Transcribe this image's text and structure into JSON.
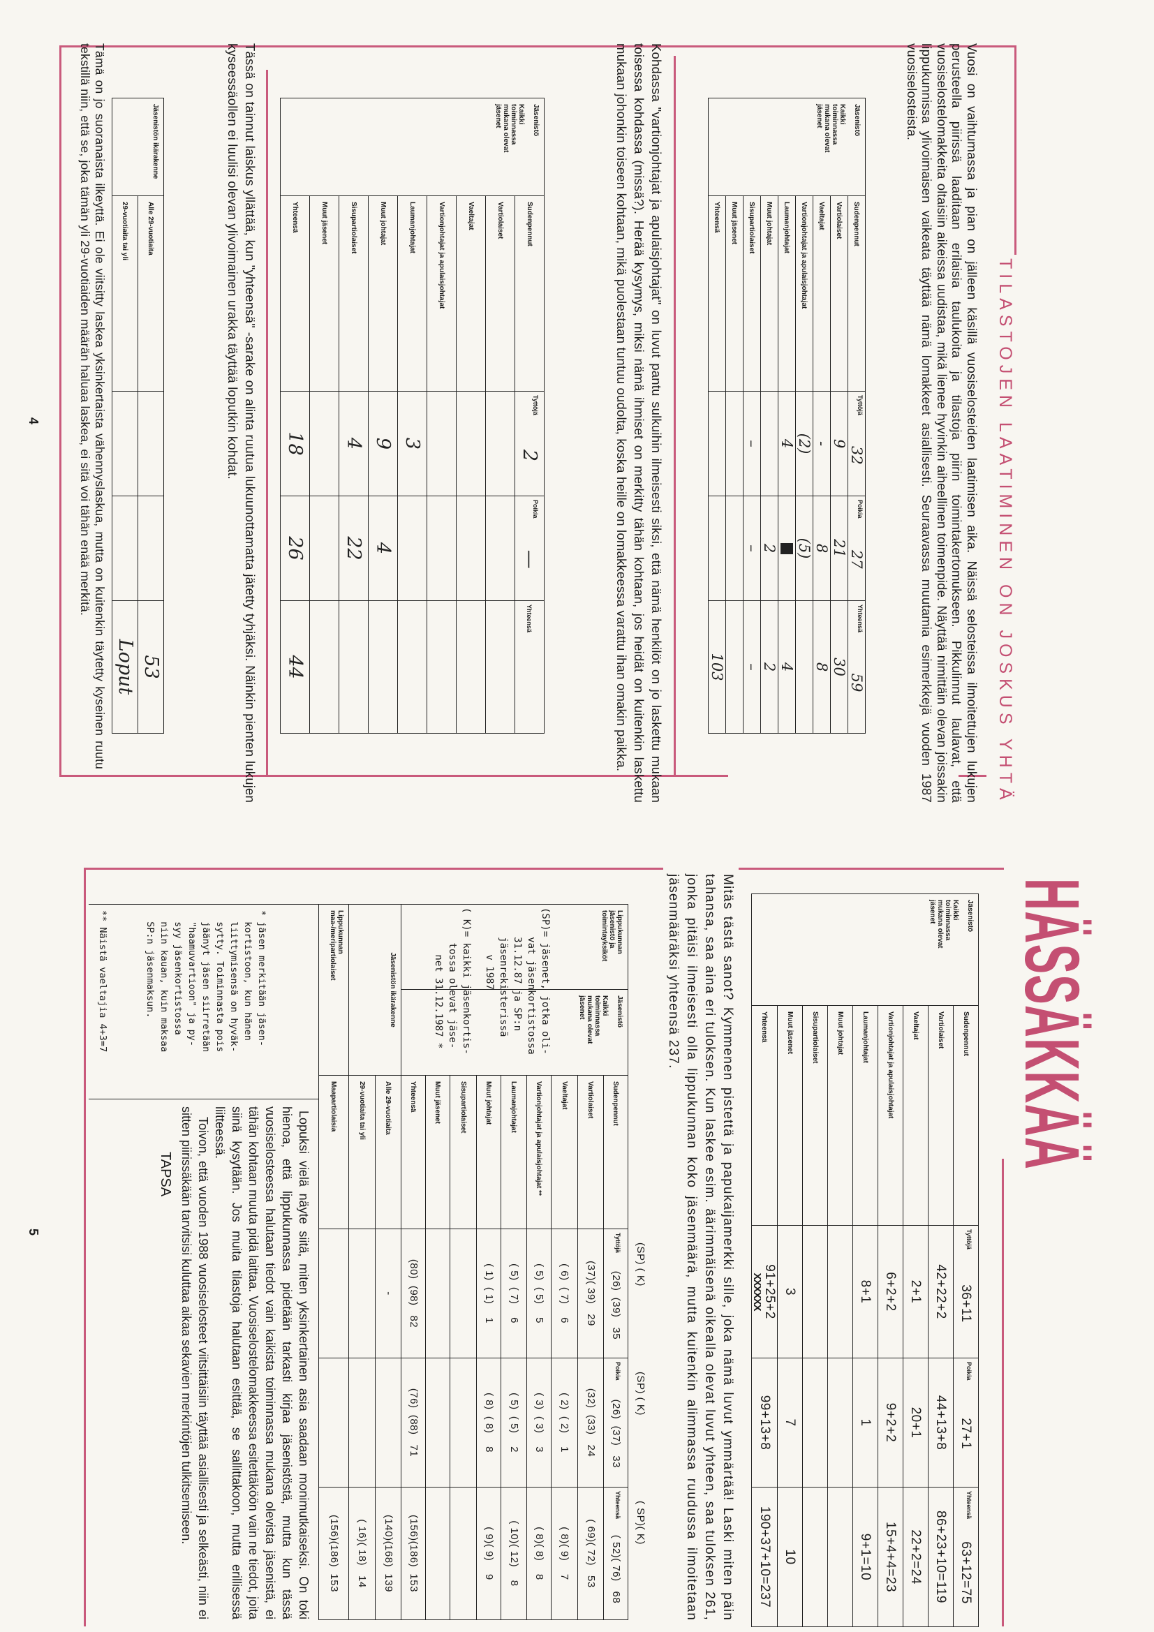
{
  "page4": {
    "title": "TILASTOJEN LAATIMINEN ON JOSKUS YHTÄ",
    "intro": "Vuosi on vaihtumassa ja pian on jälleen käsillä vuosiselosteiden laatimisen aika. Näissä selosteissa ilmoitettujen lukujen perusteella piirissä laaditaan erilaisia taulukoita ja tilastoja piirin toimintakertomukseen. Pikkulinnut laulavat, että vuosiselostelomakkeita oltaisiin aikeissa uudistaa, mikä lienee hyvinkin aiheellinen toimenpide. Näyttää nimittäin olevan joissakin lippukunnissa ylivoimaisen vaikeata täyttää nämä lomakkeet asiallisesti. Seuraavassa muutamia esimerkkejä vuoden 1987 vuosiselosteista.",
    "table1": {
      "group_title": "Jäsenistö",
      "group_subtitle": "Kaikki toiminnassa mukana olevat jäsenet",
      "columns": [
        "Tyttöjä",
        "Poikia",
        "Yhteensä"
      ],
      "rows": [
        {
          "label": "Sudenpennut",
          "values": [
            "32",
            "27",
            "59"
          ]
        },
        {
          "label": "Vartiolaiset",
          "values": [
            "9",
            "21",
            "30"
          ]
        },
        {
          "label": "Vaeltajat",
          "values": [
            "-",
            "8",
            "8"
          ]
        },
        {
          "label": "Vartionjohtajat ja apulaisjohtajat",
          "values": [
            "(2)",
            "(5)",
            ""
          ]
        },
        {
          "label": "Laumanjohtajat",
          "values": [
            "4",
            "■",
            "4"
          ]
        },
        {
          "label": "Muut johtajat",
          "values": [
            "",
            "2",
            "2"
          ]
        },
        {
          "label": "Sisupartiolaiset",
          "values": [
            "–",
            "–",
            "–"
          ]
        },
        {
          "label": "Muut jäsenet",
          "values": [
            "",
            "",
            ""
          ]
        },
        {
          "label": "Yhteensä",
          "values": [
            "",
            "",
            "103"
          ]
        }
      ]
    },
    "comment1": "Kohdassa \"vartionjohtajat ja apulaisjohtajat\" on luvut pantu sulkuihin ilmeisesti siksi, että nämä henkilöt on jo laskettu mukaan toisessa kohdassa (missä?). Herää kysymys, miksi nämä ihmiset on merkitty tähän kohtaan, jos heidät on kuitenkin laskettu mukaan johonkin toiseen kohtaan, mikä puolestaan tuntuu oudolta, koska heille on lomakkeessa varattu ihan omakin paikka.",
    "table2": {
      "group_title": "Jäsenistö",
      "group_subtitle": "Kaikki toiminnassa mukana olevat jäsenet",
      "columns": [
        "Tyttöjä",
        "Poikia",
        "Yhteensä"
      ],
      "rows": [
        {
          "label": "Sudenpennut",
          "values": [
            "2",
            "—",
            ""
          ]
        },
        {
          "label": "Vartiolaiset",
          "values": [
            "",
            "",
            ""
          ]
        },
        {
          "label": "Vaeltajat",
          "values": [
            "",
            "",
            ""
          ]
        },
        {
          "label": "Vartionjohtajat ja apulaisjohtajat",
          "values": [
            "",
            "",
            ""
          ]
        },
        {
          "label": "Laumanjohtajat",
          "values": [
            "3",
            "",
            ""
          ]
        },
        {
          "label": "Muut johtajat",
          "values": [
            "9",
            "4",
            ""
          ]
        },
        {
          "label": "Sisupartiolaiset",
          "values": [
            "4",
            "22",
            ""
          ]
        },
        {
          "label": "Muut jäsenet",
          "values": [
            "",
            "",
            ""
          ]
        },
        {
          "label": "Yhteensä",
          "values": [
            "18",
            "26",
            "44"
          ]
        }
      ]
    },
    "comment2": "Tässä on tainnut laiskus yllättää, kun \"yhteensä\" -sarake on alinta ruutua lukuunottamatta jätetty tyhjäksi. Näinkin pienten lukujen kyseessäollen ei luulisi olevan ylivoimainen urakka täyttää loputkin kohdat.",
    "table3": {
      "group_title": "Jäsenistön ikärakenne",
      "rows": [
        {
          "label": "Alle 29-vuotiaita",
          "values": [
            "",
            "",
            "53"
          ]
        },
        {
          "label": "29-vuotiaita tai yli",
          "values": [
            "",
            "",
            "Loput"
          ]
        }
      ]
    },
    "comment3": "Tämä on jo suoranaista ilkeyttä. Ei ole viitsitty laskea yksinkertaista vähennyslaskua, mutta on kuitenkin täytetty kyseinen ruutu tekstillä niin, että se, joka tämän yli 29-vuotiaiden määrän haluaa laskea, ei sitä voi tähän enää merkitä.",
    "page_number": "4"
  },
  "page5": {
    "title": "HÄSSÄKKÄÄ",
    "table4": {
      "group_title": "Jäsenistö",
      "group_subtitle": "Kaikki toiminnassa mukana olevat jäsenet",
      "columns": [
        "Tyttöjä",
        "Poikia",
        "Yhteensä"
      ],
      "rows": [
        {
          "label": "Sudenpennut",
          "values": [
            "36+11",
            "27+1",
            "63+12=75"
          ]
        },
        {
          "label": "Vartiolaiset",
          "values": [
            "42+22+2",
            "44+13+8",
            "86+23+10=119"
          ]
        },
        {
          "label": "Vaeltajat",
          "values": [
            "2+1",
            "20+1",
            "22+2=24"
          ]
        },
        {
          "label": "Vartionjohtajat ja apulaisjohtajat",
          "values": [
            "6+2+2",
            "9+2+2",
            "15+4+4=23"
          ]
        },
        {
          "label": "Laumanjohtajat",
          "values": [
            "8+1",
            "1",
            "9+1=10"
          ]
        },
        {
          "label": "Muut johtajat",
          "values": [
            "",
            "",
            ""
          ]
        },
        {
          "label": "Sisupartiolaiset",
          "values": [
            "",
            "",
            ""
          ]
        },
        {
          "label": "Muut jäsenet",
          "values": [
            "3",
            "7",
            "10"
          ]
        },
        {
          "label": "Yhteensä",
          "values": [
            "91+25+2",
            "99+13+8",
            "190+37+10=237"
          ],
          "struck": "XXXXXX"
        }
      ]
    },
    "comment1": "Mitäs tästä sanot? Kymmenen pistettä ja papukaijamerkki sille, joka nämä luvut ymmärtää! Laski miten päin tahansa, saa aina eri tuloksen. Kun laskee esim. äärimmäisenä oikealla olevat luvut yhteen, saa tuloksen 261, jonka pitäisi ilmeisesti olla lippukunnan koko jäsenmäärä, mutta kuitenkin alimmassa ruudussa ilmoitetaan jäsenmääräksi yhteensä 237.",
    "table5": {
      "column_markers": [
        "(SP) ( K)",
        "(SP) ( K)",
        "( SP)( K)"
      ],
      "section_title": "Lippukunnan jäsenistö ja toimintayksiköt",
      "group_title": "Jäsenistö",
      "group_subtitle": "Kaikki toiminnassa mukana olevat jäsenet",
      "columns": [
        "Tyttöjä",
        "Poikia",
        "Yhteensä"
      ],
      "sp_note": "(SP)= jäsenet, jotka oli-\n     vat jäsenkortistossa\n     31.12.87 ja SP:n\n     jäsenrekisterissä\n        v 1987",
      "k_note": "( K)= kaikki jäsenkortis-\n      tossa olevat jäse-\n        net 31.12.1987 *",
      "age_group_title": "Jäsenistön ikärakenne",
      "sea_group_title": "Lippukunnan maa-/meripartiolaiset",
      "rows": [
        {
          "label": "Sudenpennut",
          "values": [
            "(26)  (39)   35",
            "(26)  (37)   33",
            "( 52)( 76)   68"
          ]
        },
        {
          "label": "Vartiolaiset",
          "values": [
            "(37)( 39)   29",
            "(32)  (33)   24",
            "( 69)( 72)   53"
          ]
        },
        {
          "label": "Vaeltajat",
          "values": [
            "( 6)  ( 7)    6",
            "( 2)  ( 2)    1",
            "( 8)( 9)    7"
          ]
        },
        {
          "label": "Vartionjohtajat ja apulaisjohtajat  **",
          "values": [
            "( 5)  ( 5)    5",
            "( 3)  ( 3)    3",
            "( 8)( 8)    8"
          ]
        },
        {
          "label": "Laumanjohtajat",
          "values": [
            "( 5)  ( 7)    6",
            "( 5)  ( 5)    2",
            "( 10)( 12)    8"
          ]
        },
        {
          "label": "Muut johtajat",
          "values": [
            "( 1)  ( 1)    1",
            "( 8)  ( 8)    8",
            "( 9)( 9)    9"
          ]
        },
        {
          "label": "Sisupartiolaiset",
          "values": [
            "",
            "",
            ""
          ]
        },
        {
          "label": "Muut jäsenet",
          "values": [
            "",
            "",
            ""
          ]
        },
        {
          "label": "Yhteensä",
          "values": [
            "(80)  (98)   82",
            "(76)  (88)   71",
            "(156)(186)  153"
          ]
        },
        {
          "label": "Alle 29-vuotiaita",
          "values": [
            "-",
            "",
            "(140)(168)  139"
          ]
        },
        {
          "label": "29-vuotiaita tai yli",
          "values": [
            "",
            "",
            "( 16)( 18)   14"
          ]
        },
        {
          "label": "Maapartiolaisia",
          "values": [
            "",
            "",
            "(156)(186)  153"
          ]
        }
      ]
    },
    "footnote1": "* jäsen merkitään jäsen-\n  kortistoon, kun hänen\n  liittymisensä on hyväk-\n  sytty. Toiminnasta pois\n  jäänyt jäsen siirretään\n  \"haamuvartioon\" ja py-\n  syy jäsenkortistossa\n  niin kauan, kuin maksaa\n  SP:n jäsenmaksun.",
    "footnote2": "** Näistä vaeltajia 4+3=7",
    "closing1": "Lopuksi vielä näyte siitä, miten yksinkertainen asia saadaan monimutkaiseksi. On toki hienoa, että lippukunnassa pidetään tarkasti kirjaa jäsenistöstä, mutta kun tässä vuosiselosteessa halutaan tiedot vain kaikista toiminnassa mukana olevista jäsenistä, ei tähän kohtaan muuta pidä laittaa. Vuosiselostelomakkeessa esitettäköön vain ne tiedot, joita siinä kysytään. Jos muita tilastoja halutaan esittää, se sallittakoon, mutta erillisessä liitteessä.",
    "closing2": "Toivon, että vuoden 1988 vuosiselosteet viitsittäisiin täyttää asiallisesti ja selkeästi, niin ei sitten piirissäkään tarvitsisi kuluttaa aikaa sekavien merkintöjen tulkitsemiseen.",
    "signature": "TAPSA",
    "page_number": "5"
  },
  "colors": {
    "accent": "#c44f72",
    "frame": "#c95a7c",
    "paper": "#f8f6f1",
    "ink": "#1c1c1c"
  }
}
